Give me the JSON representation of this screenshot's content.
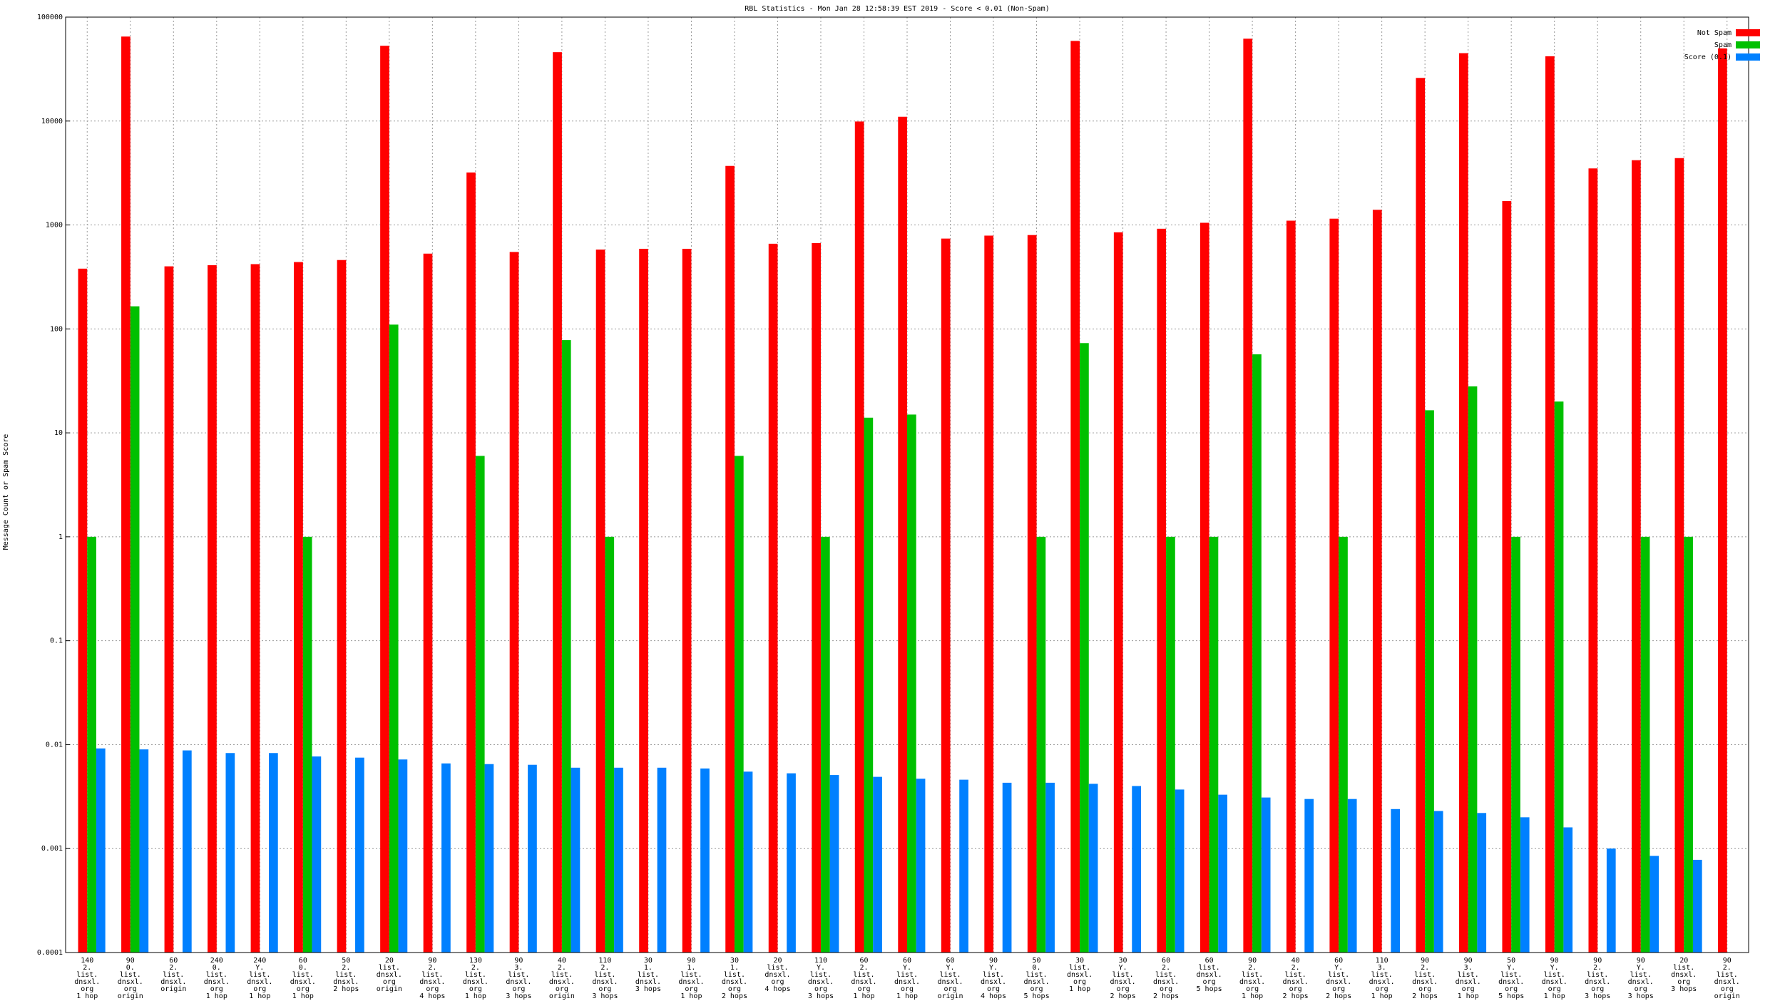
{
  "chart_data": {
    "type": "bar",
    "log_scale": true,
    "grid": true,
    "legend": "top-right",
    "title": "RBL Statistics - Mon Jan 28 12:58:39 EST 2019 - Score < 0.01 (Non-Spam)",
    "y_label": "Message Count or Spam Score",
    "ylim": [
      0.0001,
      100000
    ],
    "yticks": [
      0.0001,
      0.001,
      0.01,
      0.1,
      1,
      10,
      100,
      1000,
      10000,
      100000
    ],
    "categories": [
      [
        "140",
        "2.",
        "list.",
        "dnsxl.",
        "org",
        "1 hop"
      ],
      [
        "90",
        "0.",
        "list.",
        "dnsxl.",
        "org",
        "origin"
      ],
      [
        "60",
        "2.",
        "list.",
        "dnsxl.",
        "origin"
      ],
      [
        "240",
        "0.",
        "list.",
        "dnsxl.",
        "org",
        "1 hop"
      ],
      [
        "240",
        "Y.",
        "list.",
        "dnsxl.",
        "org",
        "1 hop"
      ],
      [
        "60",
        "0.",
        "list.",
        "dnsxl.",
        "org",
        "1 hop"
      ],
      [
        "50",
        "2.",
        "list.",
        "dnsxl.",
        "2 hops"
      ],
      [
        "20",
        "list.",
        "dnsxl.",
        "org",
        "origin"
      ],
      [
        "90",
        "2.",
        "list.",
        "dnsxl.",
        "org",
        "4 hops"
      ],
      [
        "130",
        "2.",
        "list.",
        "dnsxl.",
        "org",
        "1 hop"
      ],
      [
        "90",
        "3.",
        "list.",
        "dnsxl.",
        "org",
        "3 hops"
      ],
      [
        "40",
        "2.",
        "list.",
        "dnsxl.",
        "org",
        "origin"
      ],
      [
        "110",
        "2.",
        "list.",
        "dnsxl.",
        "org",
        "3 hops"
      ],
      [
        "30",
        "1.",
        "list.",
        "dnsxl.",
        "3 hops"
      ],
      [
        "90",
        "1.",
        "list.",
        "dnsxl.",
        "org",
        "1 hop"
      ],
      [
        "30",
        "1.",
        "list.",
        "dnsxl.",
        "org",
        "2 hops"
      ],
      [
        "20",
        "list.",
        "dnsxl.",
        "org",
        "4 hops"
      ],
      [
        "110",
        "Y.",
        "list.",
        "dnsxl.",
        "org",
        "3 hops"
      ],
      [
        "60",
        "2.",
        "list.",
        "dnsxl.",
        "org",
        "1 hop"
      ],
      [
        "60",
        "Y.",
        "list.",
        "dnsxl.",
        "org",
        "1 hop"
      ],
      [
        "60",
        "Y.",
        "list.",
        "dnsxl.",
        "org",
        "origin"
      ],
      [
        "90",
        "Y.",
        "list.",
        "dnsxl.",
        "org",
        "4 hops"
      ],
      [
        "50",
        "0.",
        "list.",
        "dnsxl.",
        "org",
        "5 hops"
      ],
      [
        "30",
        "list.",
        "dnsxl.",
        "org",
        "1 hop"
      ],
      [
        "30",
        "Y.",
        "list.",
        "dnsxl.",
        "org",
        "2 hops"
      ],
      [
        "60",
        "2.",
        "list.",
        "dnsxl.",
        "org",
        "2 hops"
      ],
      [
        "60",
        "list.",
        "dnsxl.",
        "org",
        "5 hops"
      ],
      [
        "90",
        "2.",
        "list.",
        "dnsxl.",
        "org",
        "1 hop"
      ],
      [
        "40",
        "2.",
        "list.",
        "dnsxl.",
        "org",
        "2 hops"
      ],
      [
        "60",
        "Y.",
        "list.",
        "dnsxl.",
        "org",
        "2 hops"
      ],
      [
        "110",
        "3.",
        "list.",
        "dnsxl.",
        "org",
        "1 hop"
      ],
      [
        "90",
        "2.",
        "list.",
        "dnsxl.",
        "org",
        "2 hops"
      ],
      [
        "90",
        "3.",
        "list.",
        "dnsxl.",
        "org",
        "1 hop"
      ],
      [
        "50",
        "Y.",
        "list.",
        "dnsxl.",
        "org",
        "5 hops"
      ],
      [
        "90",
        "Y.",
        "list.",
        "dnsxl.",
        "org",
        "1 hop"
      ],
      [
        "90",
        "2.",
        "list.",
        "dnsxl.",
        "org",
        "3 hops"
      ],
      [
        "90",
        "Y.",
        "list.",
        "dnsxl.",
        "org",
        "3 hops"
      ],
      [
        "20",
        "list.",
        "dnsxl.",
        "org",
        "3 hops"
      ],
      [
        "90",
        "2.",
        "list.",
        "dnsxl.",
        "org",
        "origin"
      ]
    ],
    "series": [
      {
        "name": "Not Spam",
        "color": "#ff0000",
        "values": [
          380,
          65000,
          400,
          410,
          420,
          440,
          460,
          53000,
          530,
          3200,
          550,
          46000,
          580,
          590,
          590,
          3700,
          660,
          670,
          9900,
          11000,
          740,
          790,
          800,
          59000,
          850,
          920,
          1050,
          62000,
          1100,
          1150,
          1400,
          26000,
          45000,
          1700,
          42000,
          3500,
          4200,
          4400,
          50000
        ]
      },
      {
        "name": "Spam",
        "color": "#00c000",
        "values": [
          1,
          165,
          null,
          null,
          null,
          1,
          null,
          110,
          null,
          6,
          null,
          78,
          1,
          null,
          null,
          6,
          null,
          1,
          14,
          15,
          null,
          null,
          1,
          73,
          null,
          1,
          1,
          57,
          null,
          1,
          null,
          16.5,
          28,
          1,
          20,
          null,
          1,
          1,
          null
        ]
      },
      {
        "name": "Score (0.1)",
        "color": "#0080ff",
        "values": [
          0.0092,
          0.009,
          0.0088,
          0.0083,
          0.0083,
          0.0077,
          0.0075,
          0.0072,
          0.0066,
          0.0065,
          0.0064,
          0.006,
          0.006,
          0.006,
          0.0059,
          0.0055,
          0.0053,
          0.0051,
          0.0049,
          0.0047,
          0.0046,
          0.0043,
          0.0043,
          0.0042,
          0.004,
          0.0037,
          0.0033,
          0.0031,
          0.003,
          0.003,
          0.0024,
          0.0023,
          0.0022,
          0.002,
          0.0016,
          0.001,
          0.00085,
          0.00078,
          null
        ]
      }
    ]
  }
}
